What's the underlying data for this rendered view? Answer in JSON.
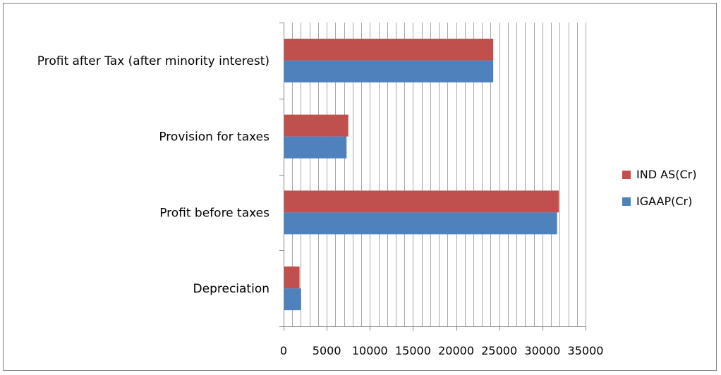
{
  "chart_data": {
    "type": "bar",
    "orientation": "horizontal",
    "categories": [
      "Depreciation",
      "Profit before taxes",
      "Provision for taxes",
      "Profit after Tax (after minority interest)"
    ],
    "series": [
      {
        "name": "IGAAP(Cr)",
        "values": [
          2000,
          31700,
          7300,
          24300
        ],
        "color": "#4f81bd"
      },
      {
        "name": "IND AS(Cr)",
        "values": [
          1850,
          31900,
          7500,
          24300
        ],
        "color": "#c0504d"
      }
    ],
    "x_ticks": [
      "0",
      "5000",
      "10000",
      "15000",
      "20000",
      "25000",
      "30000",
      "35000"
    ],
    "xlim": [
      0,
      35000
    ],
    "minor_grid_step": 1000,
    "grid": true,
    "legend_position": "right",
    "legend": [
      "IND AS(Cr)",
      "IGAAP(Cr)"
    ]
  }
}
